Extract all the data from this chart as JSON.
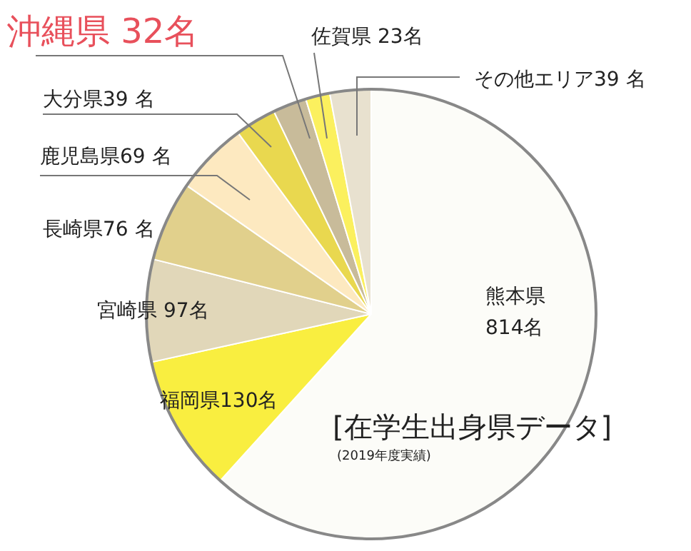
{
  "chart_data": {
    "type": "pie",
    "title": "[在学生出身県データ]",
    "annotations": [
      "(2019年度実績)"
    ],
    "categories": [
      "熊本県",
      "福岡県",
      "宮崎県",
      "長崎県",
      "鹿児島県",
      "大分県",
      "沖縄県",
      "佐賀県",
      "その他エリア"
    ],
    "values": [
      814,
      130,
      97,
      76,
      69,
      39,
      32,
      23,
      39
    ],
    "value_labels": [
      "814名",
      "130名",
      "97名",
      "76 名",
      "69 名",
      "39 名",
      "32名",
      "23名",
      "39 名"
    ],
    "colors": [
      "#fcfcf8",
      "#f9ee40",
      "#e1d7b9",
      "#e1d08c",
      "#fde9c0",
      "#e9d84f",
      "#c8bb9a",
      "#fbf05e",
      "#e8e1cf"
    ],
    "legend": false
  }
}
